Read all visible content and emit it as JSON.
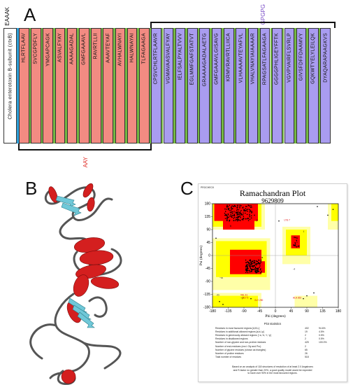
{
  "panelA": {
    "letter": "A",
    "linker_left": "EAAAK",
    "linker_top": "GPGPG",
    "linker_bottom": "AAY",
    "adjuvant": "Cholera enterotoxin B-subunit (ctxB)",
    "ctl_epitopes": [
      "HLRTFLAAV",
      "SVCGPDFLY",
      "YMGAPCAGK",
      "ASVALFYAY",
      "AAAAGADAL",
      "GMFGAAAVL",
      "RAVRTLLII",
      "AAAVTEYAF",
      "AVHALWNAYI",
      "HALWNAYAI",
      "TLFAGAAGA"
    ],
    "htl_epitopes": [
      "CPSVCHLRTFLAAVR",
      "VGMAVAASVALFYAY",
      "IELFSALPYALTVVV",
      "EGLMMFGAFSTATVT",
      "GRAAAAGADALAETG",
      "GMFGAAAVLGISAVG",
      "KRMVRAVRTLLIICA",
      "VLHAAAAVTEYAFVL",
      "VHALVNAYIAIAAAAR",
      "RPAGSATLFAGAAGA",
      "GGGGPHLIGEYFFTK",
      "VGVPVAIRFLSVRLP",
      "GIVSFDFFDAAMVY",
      "GQKWTYELYLEILQK",
      "DYAQARAPAAGKVS"
    ]
  },
  "panelB": {
    "letter": "B"
  },
  "panelC": {
    "letter": "C",
    "header_tag": "PROCHECK",
    "title": "Ramachandran Plot",
    "subtitle": "9629809",
    "xlabel": "Phi (degrees)",
    "ylabel": "Psi (degrees)",
    "xticks": [
      "-180",
      "-135",
      "-90",
      "-45",
      "0",
      "45",
      "90",
      "135",
      "180"
    ],
    "yticks": [
      "180",
      "135",
      "90",
      "45",
      "0",
      "-45",
      "-90",
      "-135",
      "-180"
    ],
    "stats_title": "Plot statistics",
    "stats": [
      {
        "label": "Residues in most favoured regions [A,B,L]",
        "n": "402",
        "pct": "94.6%"
      },
      {
        "label": "Residues in additional allowed regions [a,b,l,p]",
        "n": "19",
        "pct": "4.5%"
      },
      {
        "label": "Residues in generously allowed regions [~a,~b,~l,~p]",
        "n": "2",
        "pct": "0.5%"
      },
      {
        "label": "Residues in disallowed regions",
        "n": "2",
        "pct": "0.5%"
      },
      {
        "label": "Number of non-glycine and non-proline residues",
        "n": "425",
        "pct": "100.0%"
      },
      {
        "label": "Number of end-residues (excl. Gly and Pro)",
        "n": "2",
        "pct": ""
      },
      {
        "label": "Number of glycine residues (shown as triangles)",
        "n": "65",
        "pct": ""
      },
      {
        "label": "Number of proline residues",
        "n": "26",
        "pct": ""
      },
      {
        "label": "Total number of residues",
        "n": "518",
        "pct": ""
      }
    ],
    "footnote": [
      "Based on an analysis of 118 structures of resolution of at least 2.0 Angstroms",
      "and R-factor no greater than 20%, a good quality model would be expected",
      "to have over 90% in the most favoured regions."
    ],
    "region_labels": [
      "B",
      "A",
      "L",
      "b",
      "a",
      "l",
      "p",
      "~b",
      "~a",
      "~l",
      "~p"
    ],
    "residue_labels": [
      "LYS 7",
      "ALA 263",
      "VAL 31",
      "GLY 5",
      "GLY 290"
    ]
  },
  "colors": {
    "ctl": "#f28b82",
    "htl": "#a99cf0",
    "adjuvant": "#ffffff",
    "linker_blue": "#2f9fd8",
    "linker_green": "#74b843",
    "linker_purple": "#7b4fc7",
    "linker_red": "#e0312b",
    "helix": "#d41f1f",
    "sheet": "#6fc8d8",
    "coil": "#555555",
    "rama_red": "#ff0000",
    "rama_yellow": "#ffff00",
    "rama_pale": "#ffffa8",
    "rama_white": "#ffffff"
  }
}
